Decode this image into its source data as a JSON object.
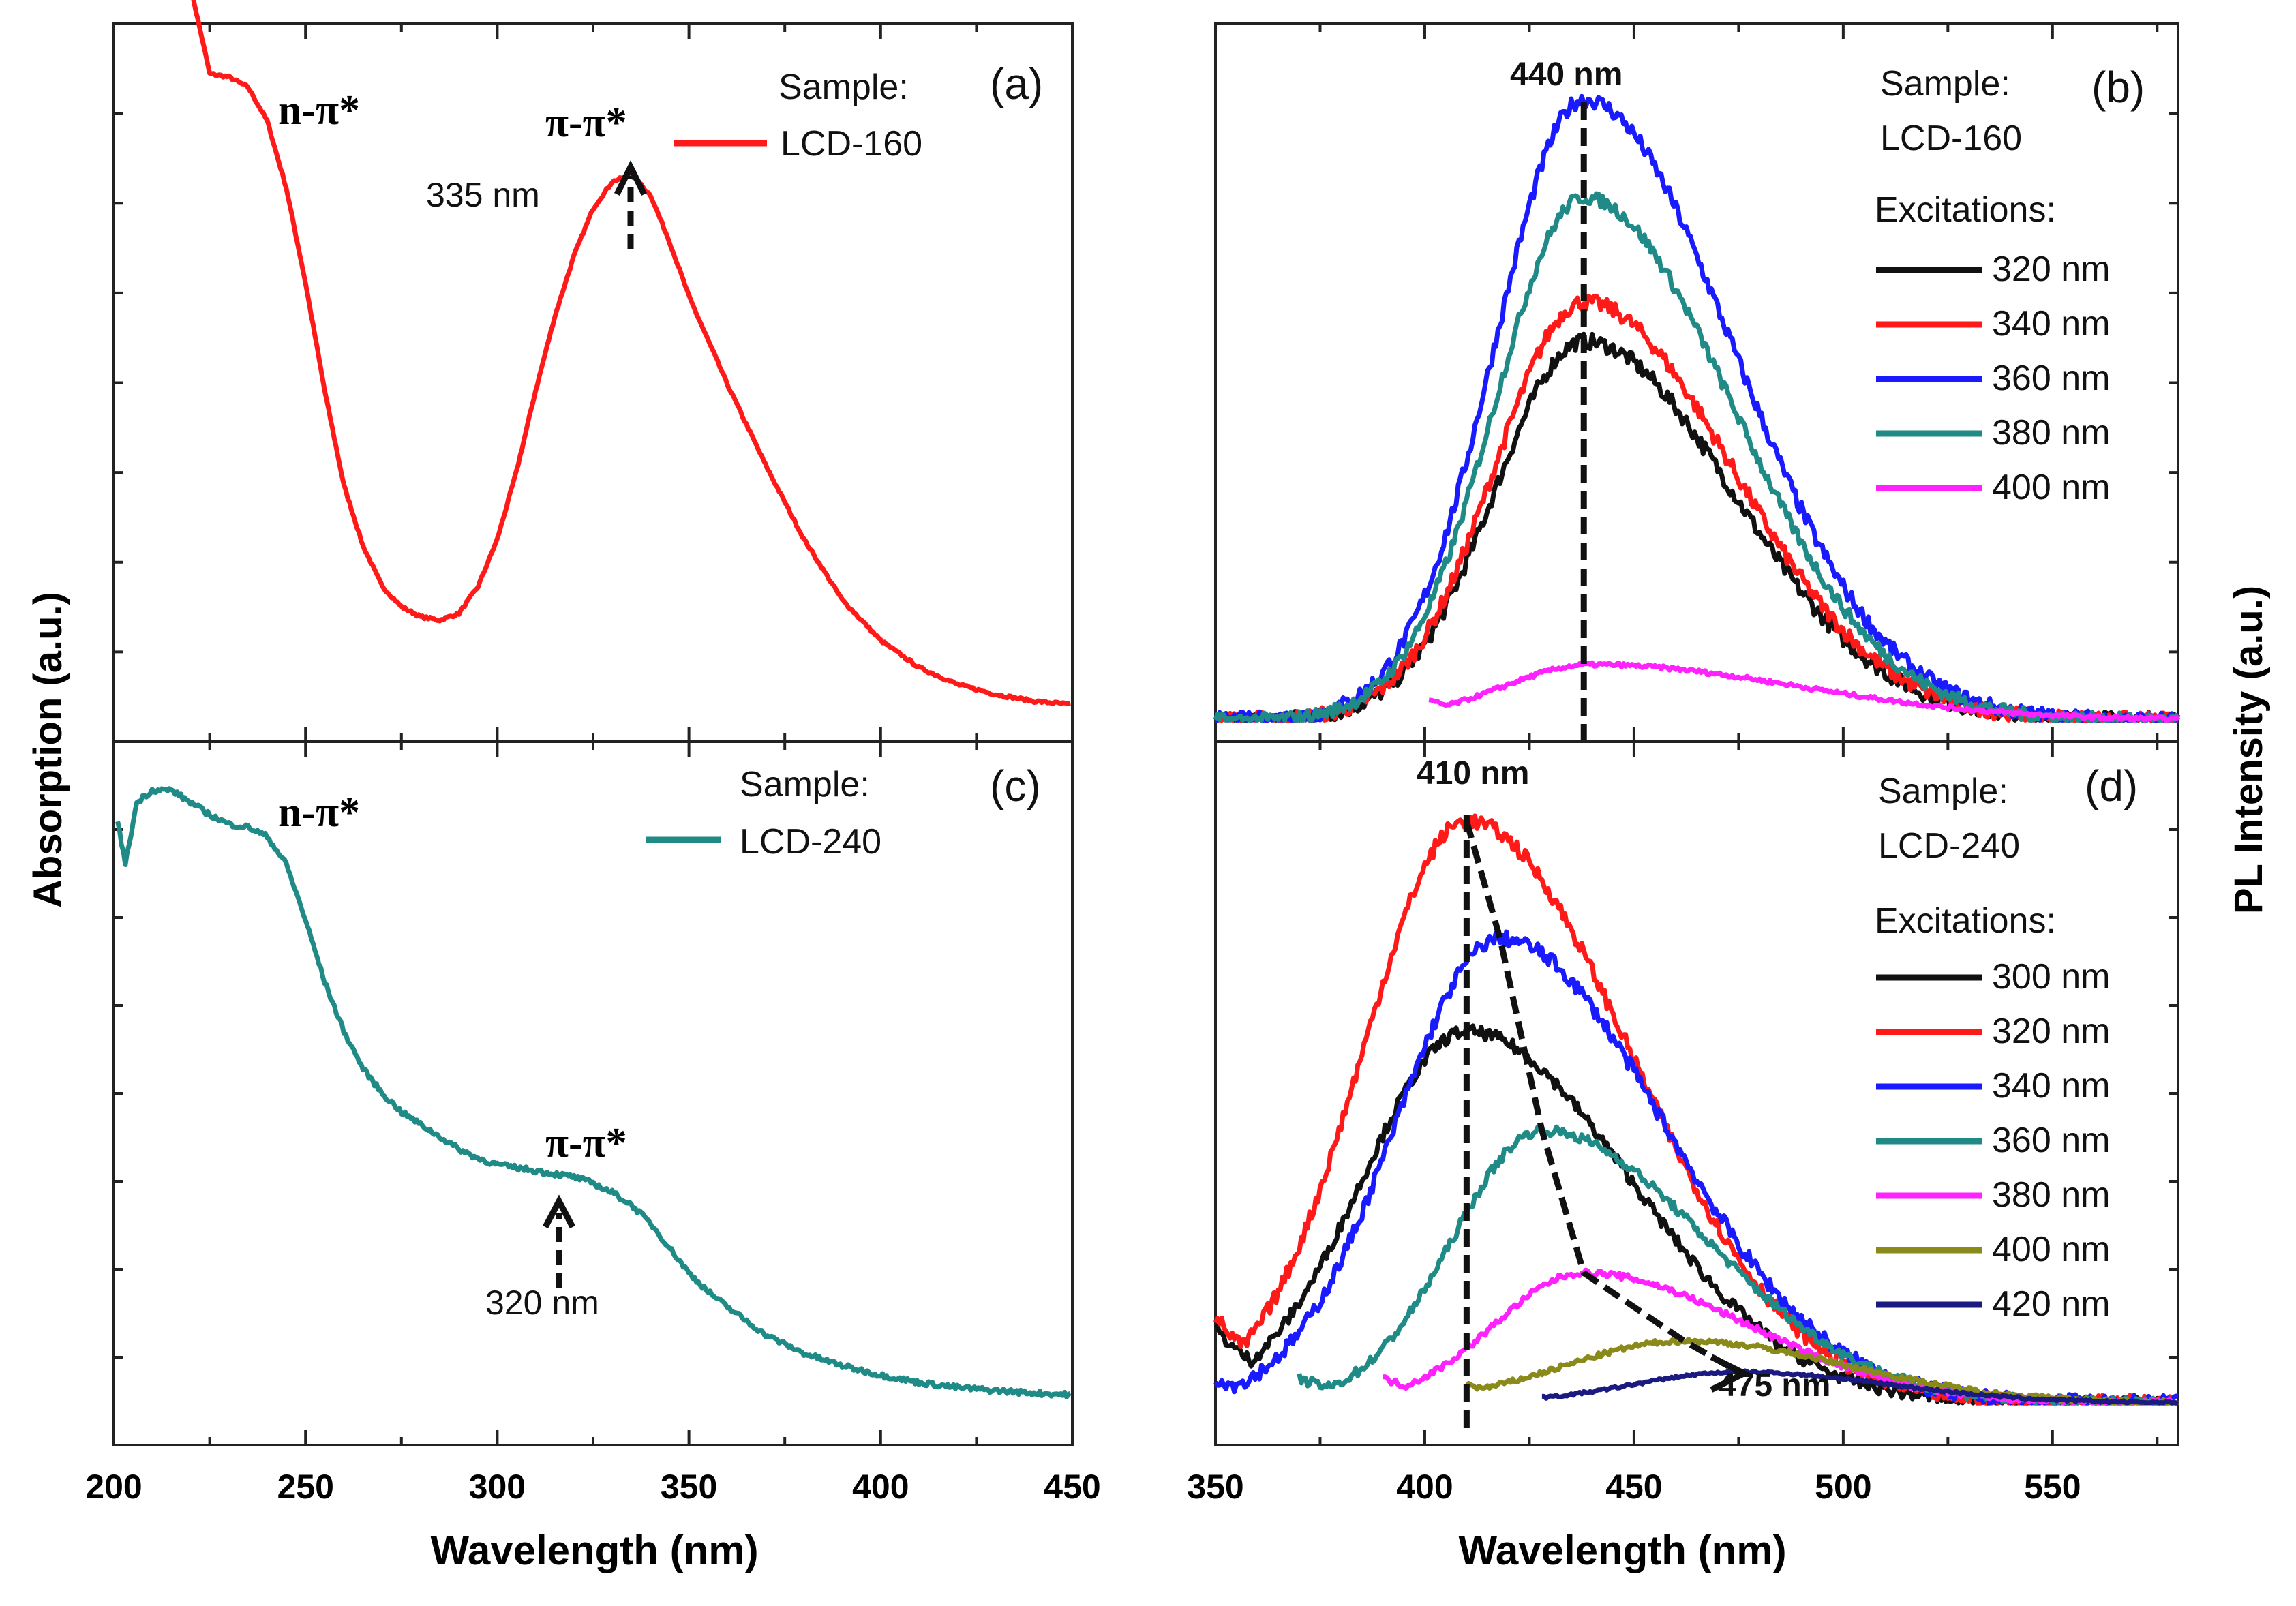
{
  "figure": {
    "left_ylabel": "Absorption (a.u.)",
    "right_ylabel": "PL Intensity (a.u.)",
    "xlabel_left": "Wavelength (nm)",
    "xlabel_right": "Wavelength (nm)"
  },
  "colors": {
    "red": "#ff1a1a",
    "teal": "#1f8a86",
    "black": "#111111",
    "blue": "#1a1aff",
    "magenta": "#ff22ff",
    "olive": "#8a8a1a",
    "navy": "#1a1a80"
  },
  "chart_data": [
    {
      "id": "a",
      "type": "line",
      "panel_label": "(a)",
      "xlim": [
        200,
        450
      ],
      "ylim": [
        0,
        1
      ],
      "x_ticks": [
        "200",
        "250",
        "300",
        "350",
        "400",
        "450"
      ],
      "legend": {
        "title": "Sample:",
        "entries": [
          {
            "label": "LCD-160",
            "color": "#ff1a1a"
          }
        ]
      },
      "annotations": {
        "n_pi": "n-π*",
        "pi_pi": "π-π*",
        "peak": "335 nm"
      },
      "series": [
        {
          "name": "LCD-160",
          "color": "#ff1a1a",
          "noise": 0.002,
          "x": [
            220,
            225,
            230,
            235,
            240,
            245,
            250,
            255,
            260,
            265,
            270,
            275,
            280,
            285,
            290,
            295,
            300,
            305,
            310,
            315,
            320,
            325,
            330,
            335,
            340,
            345,
            350,
            360,
            370,
            380,
            390,
            400,
            410,
            420,
            430,
            440,
            450
          ],
          "y": [
            1.12,
            0.99,
            0.985,
            0.97,
            0.92,
            0.82,
            0.68,
            0.52,
            0.38,
            0.29,
            0.23,
            0.2,
            0.185,
            0.18,
            0.19,
            0.23,
            0.3,
            0.4,
            0.52,
            0.63,
            0.72,
            0.79,
            0.83,
            0.84,
            0.81,
            0.74,
            0.66,
            0.53,
            0.41,
            0.3,
            0.21,
            0.15,
            0.11,
            0.085,
            0.07,
            0.06,
            0.055
          ]
        }
      ]
    },
    {
      "id": "b",
      "type": "line",
      "panel_label": "(b)",
      "xlim": [
        350,
        580
      ],
      "ylim": [
        0,
        1
      ],
      "x_ticks": [
        "350",
        "400",
        "450",
        "500",
        "550"
      ],
      "legend": {
        "title": "Sample:",
        "subtitle": "LCD-160",
        "excitations_title": "Excitations:",
        "entries": [
          {
            "label": "320 nm",
            "color": "#111111"
          },
          {
            "label": "340 nm",
            "color": "#ff1a1a"
          },
          {
            "label": "360 nm",
            "color": "#1a1aff"
          },
          {
            "label": "380 nm",
            "color": "#1f8a86"
          },
          {
            "label": "400 nm",
            "color": "#ff22ff"
          }
        ]
      },
      "annotations": {
        "peak": "440 nm",
        "peak_x": 438
      },
      "series": [
        {
          "name": "320 nm",
          "color": "#111111",
          "start": 350,
          "start_y": 0.0,
          "peak_x": 438,
          "amp": 0.58,
          "wl": 30,
          "wr": 50,
          "noise": 0.012
        },
        {
          "name": "340 nm",
          "color": "#ff1a1a",
          "start": 350,
          "start_y": 0.0,
          "peak_x": 438,
          "amp": 0.64,
          "wl": 30,
          "wr": 50,
          "noise": 0.012
        },
        {
          "name": "360 nm",
          "color": "#1a1aff",
          "start": 350,
          "start_y": 0.0,
          "peak_x": 438,
          "amp": 0.95,
          "wl": 30,
          "wr": 50,
          "noise": 0.012
        },
        {
          "name": "380 nm",
          "color": "#1f8a86",
          "start": 350,
          "start_y": 0.0,
          "peak_x": 438,
          "amp": 0.8,
          "wl": 30,
          "wr": 50,
          "noise": 0.01
        },
        {
          "name": "400 nm",
          "color": "#ff22ff",
          "start": 401,
          "start_y": 0.03,
          "peak_x": 440,
          "amp": 0.085,
          "wl": 30,
          "wr": 70,
          "noise": 0.003
        }
      ]
    },
    {
      "id": "c",
      "type": "line",
      "panel_label": "(c)",
      "xlim": [
        200,
        450
      ],
      "ylim": [
        0,
        1
      ],
      "x_ticks": [
        "200",
        "250",
        "300",
        "350",
        "400",
        "450"
      ],
      "legend": {
        "title": "Sample:",
        "entries": [
          {
            "label": "LCD-240",
            "color": "#1f8a86"
          }
        ]
      },
      "annotations": {
        "n_pi": "n-π*",
        "pi_pi": "π-π*",
        "peak": "320 nm"
      },
      "series": [
        {
          "name": "LCD-240",
          "color": "#1f8a86",
          "noise": 0.004,
          "x": [
            201,
            203,
            206,
            210,
            215,
            220,
            225,
            230,
            235,
            240,
            245,
            250,
            255,
            260,
            265,
            270,
            275,
            280,
            285,
            290,
            295,
            300,
            305,
            310,
            315,
            320,
            325,
            330,
            335,
            340,
            345,
            350,
            355,
            360,
            370,
            380,
            390,
            400,
            410,
            420,
            430,
            440,
            450
          ],
          "y": [
            0.94,
            0.87,
            0.97,
            0.99,
            0.99,
            0.97,
            0.95,
            0.935,
            0.93,
            0.915,
            0.87,
            0.78,
            0.68,
            0.6,
            0.54,
            0.5,
            0.47,
            0.45,
            0.43,
            0.41,
            0.395,
            0.385,
            0.38,
            0.375,
            0.37,
            0.365,
            0.355,
            0.34,
            0.32,
            0.29,
            0.25,
            0.21,
            0.18,
            0.155,
            0.11,
            0.08,
            0.06,
            0.045,
            0.033,
            0.025,
            0.02,
            0.016,
            0.013
          ]
        }
      ]
    },
    {
      "id": "d",
      "type": "line",
      "panel_label": "(d)",
      "xlim": [
        350,
        580
      ],
      "ylim": [
        0,
        1
      ],
      "x_ticks": [
        "350",
        "400",
        "450",
        "500",
        "550"
      ],
      "legend": {
        "title": "Sample:",
        "subtitle": "LCD-240",
        "excitations_title": "Excitations:",
        "entries": [
          {
            "label": "300 nm",
            "color": "#111111"
          },
          {
            "label": "320 nm",
            "color": "#ff1a1a"
          },
          {
            "label": "340 nm",
            "color": "#1a1aff"
          },
          {
            "label": "360 nm",
            "color": "#1f8a86"
          },
          {
            "label": "380 nm",
            "color": "#ff22ff"
          },
          {
            "label": "400 nm",
            "color": "#8a8a1a"
          },
          {
            "label": "420 nm",
            "color": "#1a1a80"
          }
        ]
      },
      "annotations": {
        "peak_start": "410 nm",
        "peak_end": "475 nm",
        "arrow_path_x": [
          410,
          418,
          428,
          438,
          462,
          475
        ]
      },
      "series": [
        {
          "name": "300 nm",
          "color": "#111111",
          "start": 350,
          "start_y": 0.12,
          "peak_x": 410,
          "amp": 0.6,
          "wl": 35,
          "wr": 55,
          "noise": 0.01
        },
        {
          "name": "320 nm",
          "color": "#ff1a1a",
          "start": 350,
          "start_y": 0.14,
          "peak_x": 410,
          "amp": 0.94,
          "wl": 35,
          "wr": 55,
          "noise": 0.012
        },
        {
          "name": "340 nm",
          "color": "#1a1aff",
          "start": 350,
          "start_y": 0.04,
          "peak_x": 418,
          "amp": 0.75,
          "wl": 35,
          "wr": 55,
          "noise": 0.012
        },
        {
          "name": "360 nm",
          "color": "#1f8a86",
          "start": 370,
          "start_y": 0.04,
          "peak_x": 428,
          "amp": 0.44,
          "wl": 30,
          "wr": 55,
          "noise": 0.008
        },
        {
          "name": "380 nm",
          "color": "#ff22ff",
          "start": 390,
          "start_y": 0.04,
          "peak_x": 438,
          "amp": 0.21,
          "wl": 30,
          "wr": 55,
          "noise": 0.005
        },
        {
          "name": "400 nm",
          "color": "#8a8a1a",
          "start": 410,
          "start_y": 0.03,
          "peak_x": 462,
          "amp": 0.1,
          "wl": 40,
          "wr": 55,
          "noise": 0.004
        },
        {
          "name": "420 nm",
          "color": "#1a1a80",
          "start": 428,
          "start_y": 0.01,
          "peak_x": 475,
          "amp": 0.05,
          "wl": 35,
          "wr": 50,
          "noise": 0.002
        }
      ]
    }
  ]
}
